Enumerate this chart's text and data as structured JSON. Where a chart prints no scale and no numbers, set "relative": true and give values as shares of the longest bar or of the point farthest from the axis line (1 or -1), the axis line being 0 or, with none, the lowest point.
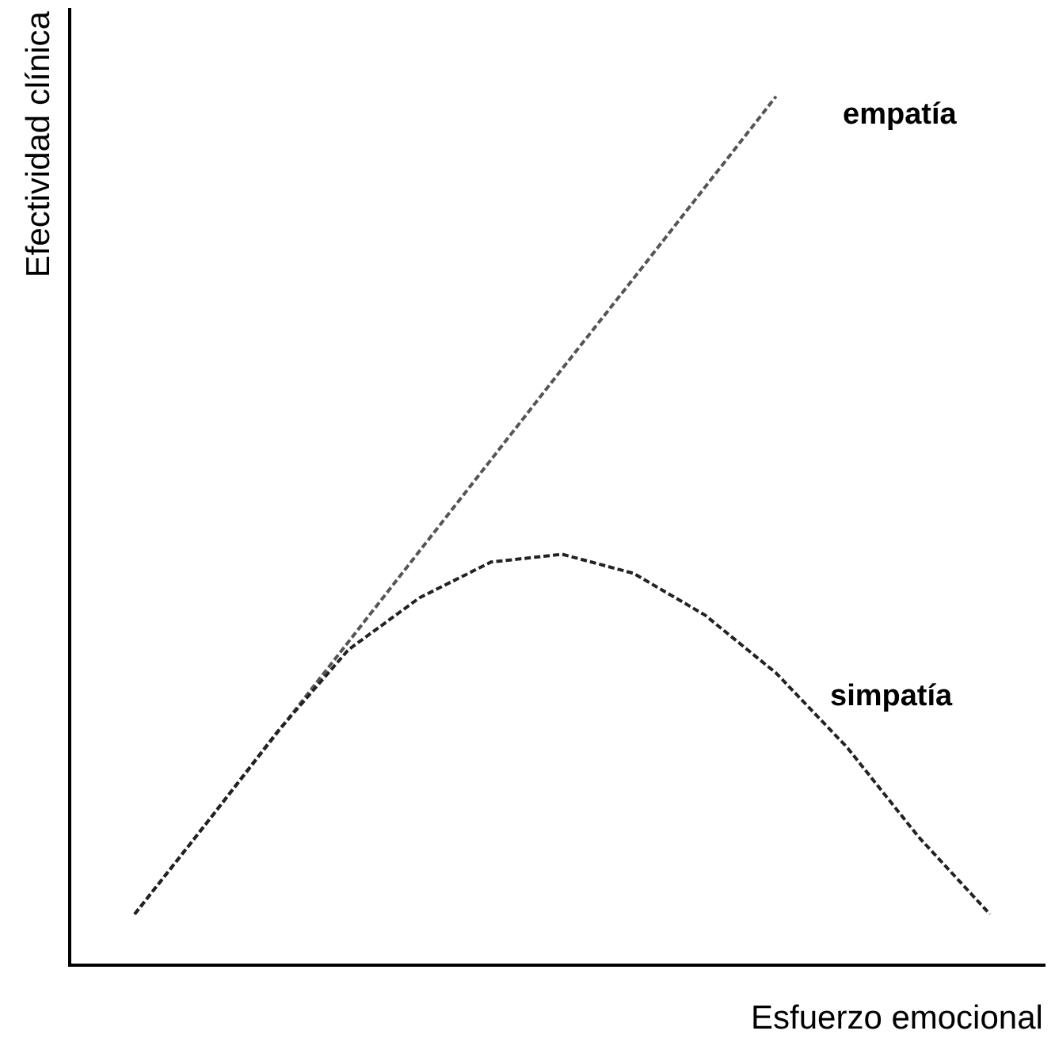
{
  "chart_data": {
    "type": "line",
    "relative": true,
    "xlabel": "Esfuerzo emocional",
    "ylabel": "Efectividad clínica",
    "categories": [
      null,
      null,
      null,
      null,
      null,
      null,
      null,
      null,
      null,
      null,
      null,
      null,
      null
    ],
    "series": [
      {
        "name": "empatía",
        "color": "#555555",
        "values": [
          0.057,
          0.161,
          0.266,
          0.371,
          0.476,
          0.581,
          0.686,
          0.79,
          0.895,
          1,
          null,
          null,
          null
        ]
      },
      {
        "name": "simpatía",
        "color": "#222222",
        "values": [
          0.057,
          0.161,
          0.267,
          0.362,
          0.422,
          0.463,
          0.472,
          0.45,
          0.402,
          0.335,
          0.249,
          0.146,
          0.057
        ]
      }
    ],
    "line_style": "dashed",
    "marker": "none",
    "legend": false
  }
}
